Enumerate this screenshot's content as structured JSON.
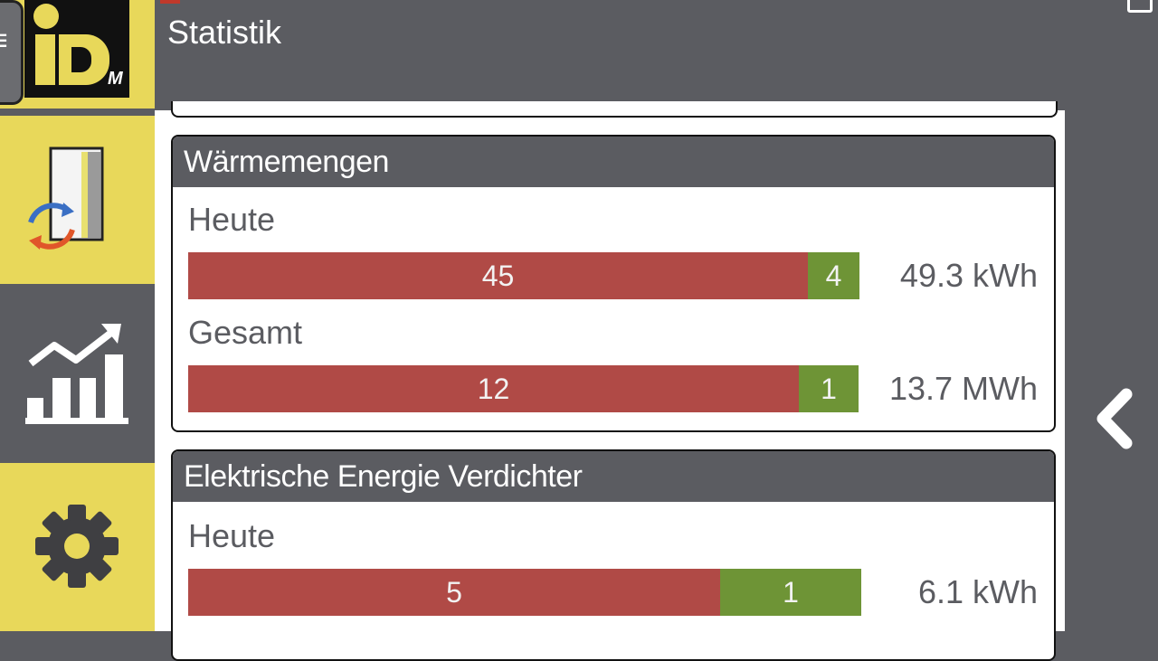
{
  "header": {
    "title": "Statistik"
  },
  "sidebar": {
    "menu_glyph": "≡",
    "logo_mark": "M",
    "items": [
      {
        "name": "house-system",
        "icon": "house-exchange-icon"
      },
      {
        "name": "statistics",
        "icon": "chart-trend-icon",
        "active": true
      },
      {
        "name": "settings",
        "icon": "gear-icon"
      }
    ]
  },
  "panels": {
    "heat": {
      "title": "Wärmemengen",
      "today": {
        "label": "Heute",
        "red_value": "45",
        "green_value": "4",
        "total": "49.3 kWh"
      },
      "overall": {
        "label": "Gesamt",
        "red_value": "12",
        "green_value": "1",
        "total": "13.7 MWh"
      }
    },
    "electric": {
      "title": "Elektrische Energie Verdichter",
      "today": {
        "label": "Heute",
        "red_value": "5",
        "green_value": "1",
        "total": "6.1 kWh"
      }
    }
  },
  "colors": {
    "header_bg": "#5b5c61",
    "accent_yellow": "#e8d85a",
    "bar_red": "#b04a46",
    "bar_green": "#6e9436"
  },
  "nav": {
    "back_icon": "chevron-left-icon"
  }
}
